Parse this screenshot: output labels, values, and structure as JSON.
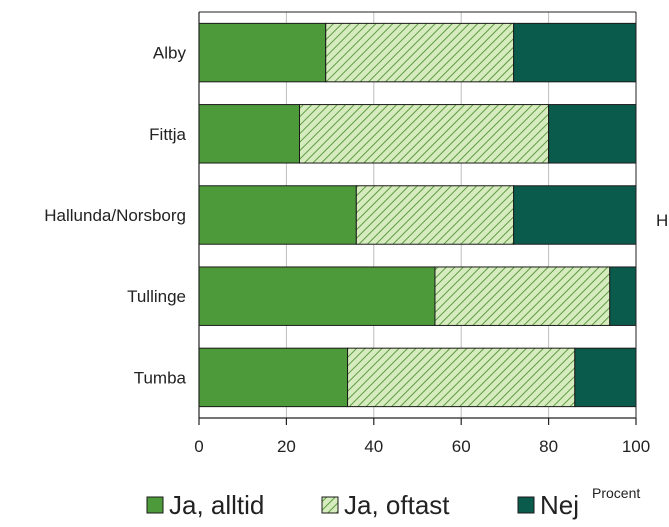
{
  "chart_data": {
    "type": "bar",
    "orientation": "horizontal",
    "stacked": true,
    "categories": [
      "Alby",
      "Fittja",
      "Hallunda/Norsborg",
      "Tullinge",
      "Tumba"
    ],
    "series": [
      {
        "name": "Ja, alltid",
        "values": [
          29,
          23,
          36,
          54,
          34
        ],
        "color": "#4d9a3a",
        "pattern": "solid"
      },
      {
        "name": "Ja, oftast",
        "values": [
          43,
          57,
          36,
          40,
          52
        ],
        "color": "#cfe8b4",
        "pattern": "hatched"
      },
      {
        "name": "Nej",
        "values": [
          28,
          20,
          28,
          6,
          14
        ],
        "color": "#0b5b4d",
        "pattern": "solid"
      }
    ],
    "xlim": [
      0,
      100
    ],
    "xticks": [
      "0",
      "20",
      "40",
      "60",
      "80",
      "100"
    ],
    "xlabel": "Procent",
    "grid": true,
    "legend_position": "bottom"
  },
  "cut_off_text": "H"
}
